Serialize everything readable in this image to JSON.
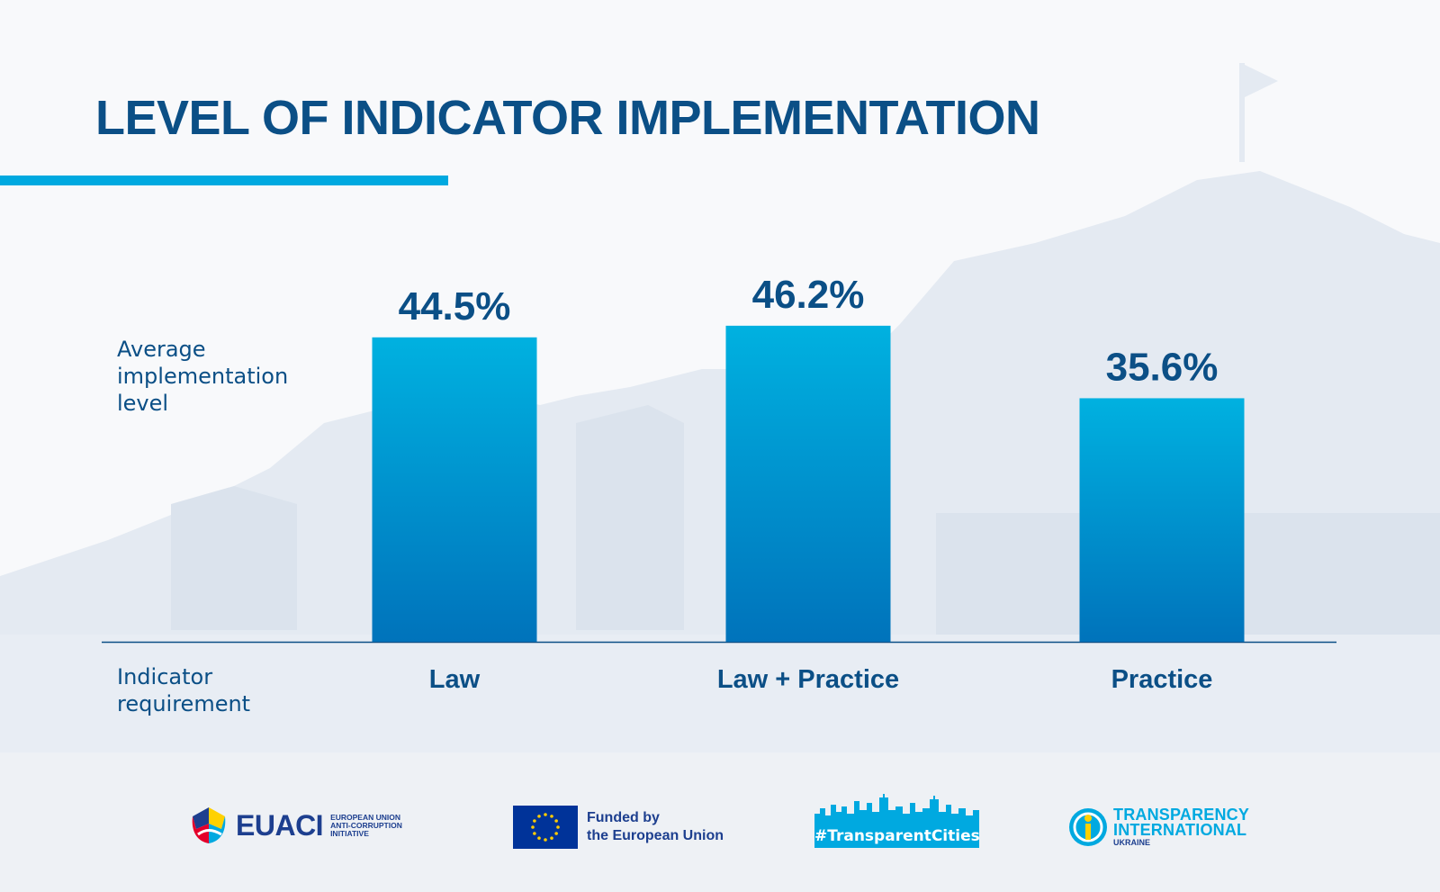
{
  "title": "LEVEL OF INDICATOR IMPLEMENTATION",
  "row_labels": {
    "value_label": [
      "Average",
      "implementation",
      "level"
    ],
    "category_label": [
      "Indicator",
      "requirement"
    ]
  },
  "chart_data": {
    "type": "bar",
    "title": "LEVEL OF INDICATOR IMPLEMENTATION",
    "categories": [
      "Law",
      "Law + Practice",
      "Practice"
    ],
    "values": [
      44.5,
      46.2,
      35.6
    ],
    "data_labels": [
      "44.5%",
      "46.2%",
      "35.6%"
    ],
    "xlabel": "Indicator requirement",
    "ylabel": "Average implementation level",
    "unit": "%",
    "ylim": [
      0,
      100
    ],
    "grid": false,
    "legend": "none"
  },
  "colors": {
    "title": "#0b4f86",
    "accent": "#00a9e0",
    "bar_top": "#00b1e0",
    "bar_bottom": "#0073bb",
    "eu_blue": "#003399",
    "eu_star": "#ffcc00"
  },
  "footer": {
    "euaci": {
      "name": "EUACI",
      "sub": [
        "EUROPEAN UNION",
        "ANTI-CORRUPTION",
        "INITIATIVE"
      ]
    },
    "eu": {
      "lines": [
        "Funded by",
        "the European Union"
      ]
    },
    "transparent_cities": {
      "label": "#TransparentCities"
    },
    "ti": {
      "lines": [
        "TRANSPARENCY",
        "INTERNATIONAL",
        "UKRAINE"
      ]
    }
  }
}
